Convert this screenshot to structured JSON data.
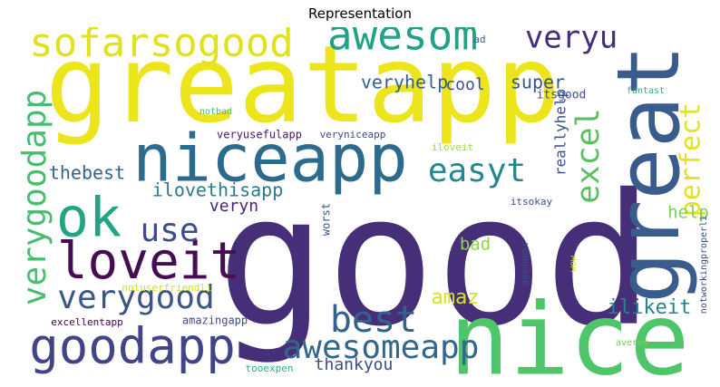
{
  "chart_data": {
    "type": "wordcloud",
    "title": "Representation",
    "words": [
      {
        "text": "good",
        "weight": 100,
        "color": "#462e79"
      },
      {
        "text": "greatapp",
        "weight": 68,
        "color": "#ece51b"
      },
      {
        "text": "nice",
        "weight": 64,
        "color": "#4fc56a"
      },
      {
        "text": "great",
        "weight": 55,
        "color": "#3a5c8c",
        "vertical": true
      },
      {
        "text": "niceapp",
        "weight": 43,
        "color": "#2d6b8e"
      },
      {
        "text": "ok",
        "weight": 36,
        "color": "#21a585"
      },
      {
        "text": "loveit",
        "weight": 34,
        "color": "#440d54"
      },
      {
        "text": "goodapp",
        "weight": 33,
        "color": "#414487"
      },
      {
        "text": "sofarsogood",
        "weight": 30,
        "color": "#e1e11f"
      },
      {
        "text": "awesom",
        "weight": 28,
        "color": "#22a186"
      },
      {
        "text": "verygoodapp",
        "weight": 24,
        "color": "#47bd6f",
        "vertical": true
      },
      {
        "text": "best",
        "weight": 23,
        "color": "#33638d"
      },
      {
        "text": "verygood",
        "weight": 23,
        "color": "#3b5587"
      },
      {
        "text": "awesomeapp",
        "weight": 21,
        "color": "#32668d"
      },
      {
        "text": "excel",
        "weight": 21,
        "color": "#58c25e",
        "vertical": true
      },
      {
        "text": "easyt",
        "weight": 20,
        "color": "#25868e"
      },
      {
        "text": "veryu",
        "weight": 20,
        "color": "#472c7a"
      },
      {
        "text": "use",
        "weight": 20,
        "color": "#3e4c8a"
      },
      {
        "text": "perfect",
        "weight": 18,
        "color": "#e4e31b",
        "vertical": true
      },
      {
        "text": "amaz",
        "weight": 16,
        "color": "#d9e121"
      },
      {
        "text": "ilovethisapp",
        "weight": 14,
        "color": "#2b798e"
      },
      {
        "text": "thebest",
        "weight": 14,
        "color": "#33638d"
      },
      {
        "text": "ilikeit",
        "weight": 14,
        "color": "#25848e"
      },
      {
        "text": "help",
        "weight": 13,
        "color": "#7ad151"
      },
      {
        "text": "bad",
        "weight": 13,
        "color": "#8fd744"
      },
      {
        "text": "veryn",
        "weight": 13,
        "color": "#482475"
      },
      {
        "text": "super",
        "weight": 13,
        "color": "#39568c"
      },
      {
        "text": "veryhelp",
        "weight": 13,
        "color": "#355f8d"
      },
      {
        "text": "cool",
        "weight": 13,
        "color": "#3c4f8a"
      },
      {
        "text": "thankyou",
        "weight": 12,
        "color": "#3e4989"
      },
      {
        "text": "reallyhelp",
        "weight": 12,
        "color": "#3c508b",
        "vertical": true
      },
      {
        "text": "itsgood",
        "weight": 8,
        "color": "#3b518b"
      },
      {
        "text": "iloveit",
        "weight": 8,
        "color": "#a0da39"
      },
      {
        "text": "veryusefulapp",
        "weight": 8,
        "color": "#481668"
      },
      {
        "text": "veryniceapp",
        "weight": 7,
        "color": "#3f4788"
      },
      {
        "text": "worst",
        "weight": 8,
        "color": "#39558c",
        "vertical": true
      },
      {
        "text": "itsokay",
        "weight": 7,
        "color": "#3c4f8a"
      },
      {
        "text": "amazingapp",
        "weight": 8,
        "color": "#404688"
      },
      {
        "text": "excellentapp",
        "weight": 7,
        "color": "#440154"
      },
      {
        "text": "notuserfriendli",
        "weight": 7,
        "color": "#d0e11c"
      },
      {
        "text": "tooexpen",
        "weight": 7,
        "color": "#2db27d"
      },
      {
        "text": "averag",
        "weight": 7,
        "color": "#6ece58"
      },
      {
        "text": "fantast",
        "weight": 6,
        "color": "#29af7f"
      },
      {
        "text": "notbad",
        "weight": 6,
        "color": "#3fbc73"
      },
      {
        "text": "ad",
        "weight": 6,
        "color": "#31668e"
      },
      {
        "text": "goodappl",
        "weight": 6,
        "color": "#3d4d8a",
        "vertical": true
      },
      {
        "text": "wow",
        "weight": 5,
        "color": "#d8e219",
        "vertical": true
      },
      {
        "text": "notworkingproperli",
        "weight": 6,
        "color": "#3e4a89",
        "vertical": true
      }
    ]
  }
}
